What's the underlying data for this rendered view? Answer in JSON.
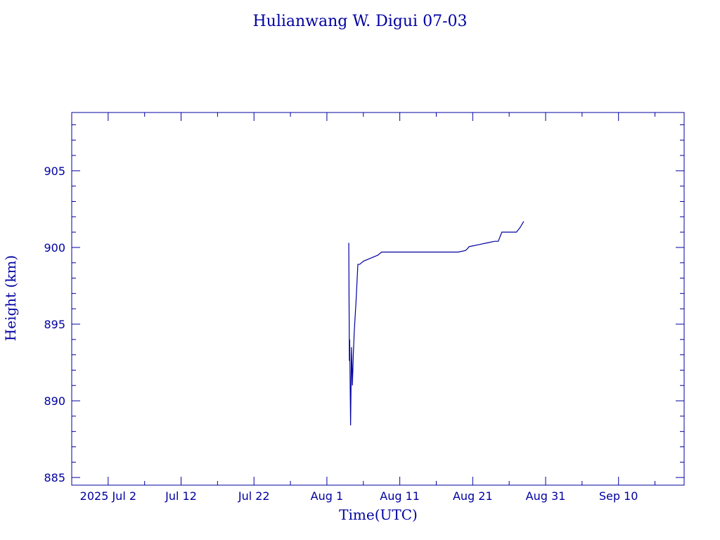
{
  "chart_data": {
    "type": "line",
    "title": "Hulianwang W. Digui 07-03",
    "xlabel": "Time(UTC)",
    "ylabel": "Height (km)",
    "x_tick_labels": [
      "2025 Jul  2",
      "Jul 12",
      "Jul 22",
      "Aug  1",
      "Aug 11",
      "Aug 21",
      "Aug 31",
      "Sep 10"
    ],
    "y_tick_labels": [
      "885",
      "890",
      "895",
      "900",
      "905"
    ],
    "xlim": [
      "2025-06-27",
      "2025-09-19"
    ],
    "ylim": [
      884.5,
      908.8
    ],
    "y_ticks": [
      885,
      890,
      895,
      900,
      905
    ],
    "grid": false,
    "series": [
      {
        "x": [
          "2025-08-04T00:00",
          "2025-08-04T02:00",
          "2025-08-04T03:00",
          "2025-08-04T06:00",
          "2025-08-04T09:00",
          "2025-08-04T12:00",
          "2025-08-04T15:00",
          "2025-08-04T18:00",
          "2025-08-05T00:00",
          "2025-08-05T06:00",
          "2025-08-05T10:00",
          "2025-08-05T12:00",
          "2025-08-06T00:00",
          "2025-08-07T00:00",
          "2025-08-08T00:00",
          "2025-08-08T12:00",
          "2025-08-09T00:00",
          "2025-08-12T00:00",
          "2025-08-15T00:00",
          "2025-08-17T00:00",
          "2025-08-19T00:00",
          "2025-08-20T00:00",
          "2025-08-20T06:00",
          "2025-08-20T12:00",
          "2025-08-21T00:00",
          "2025-08-22T00:00",
          "2025-08-23T00:00",
          "2025-08-24T00:00",
          "2025-08-24T12:00",
          "2025-08-25T00:00",
          "2025-08-26T00:00",
          "2025-08-27T00:00",
          "2025-08-27T12:00",
          "2025-08-28T00:00"
        ],
        "y": [
          900.3,
          892.6,
          894.0,
          888.4,
          893.5,
          891.0,
          893.0,
          894.5,
          896.5,
          898.9,
          898.9,
          898.9,
          899.1,
          899.3,
          899.5,
          899.7,
          899.7,
          899.7,
          899.7,
          899.7,
          899.7,
          899.8,
          899.9,
          900.05,
          900.1,
          900.2,
          900.3,
          900.4,
          900.4,
          901.0,
          901.0,
          901.0,
          901.3,
          901.7
        ]
      }
    ]
  }
}
